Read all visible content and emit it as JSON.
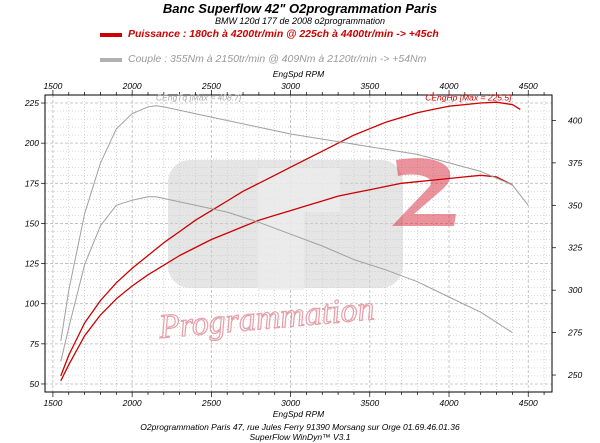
{
  "header": {
    "title": "Banc Superflow 42\" O2programmation Paris",
    "subtitle": "BMW 120d 177 de 2008 o2programmation"
  },
  "legend": [
    {
      "text": "Puissance : 180ch à 4200tr/min @ 225ch à 4400tr/min  -> +45ch",
      "color": "#cc0000",
      "text_color": "#cc0000"
    },
    {
      "text": "Couple :  355Nm à 2150tr/min @ 409Nm à 2120tr/min -> +54Nm",
      "color": "#b0b0b0",
      "text_color": "#9a9a9a"
    }
  ],
  "watermark": "Programmation",
  "footer": {
    "line1": "O2programmation Paris 47, rue Jules Ferry 91390 Morsang sur Orge 01.69.46.01.36",
    "line2": "SuperFlow WinDyn™ V3.1"
  },
  "colors": {
    "power": "#cc0000",
    "torque": "#a0a0a0",
    "grid": "#b8b8b8"
  },
  "chart_data": {
    "type": "line",
    "title": "Banc Superflow 42\" O2programmation Paris",
    "xlabel": "EngSpd RPM",
    "x_ticks": [
      1500,
      2000,
      2500,
      3000,
      3500,
      4000,
      4500
    ],
    "xlim": [
      1450,
      4650
    ],
    "y_left": {
      "lim": [
        45,
        230
      ],
      "ticks": [
        50,
        75,
        100,
        125,
        150,
        175,
        200,
        225
      ]
    },
    "y_right": {
      "lim": [
        240,
        415
      ],
      "ticks": [
        250,
        275,
        300,
        325,
        350,
        375,
        400
      ]
    },
    "annotations": [
      {
        "text": "CEngTq [Max = 408.7]",
        "color": "#a8a8a8"
      },
      {
        "text": "CEngHp [Max = 225.5]",
        "color": "#cc0000"
      }
    ],
    "series": [
      {
        "axis": "left",
        "color": "#cc0000",
        "width": 1.3,
        "x": [
          1550,
          1600,
          1700,
          1800,
          1900,
          2000,
          2100,
          2200,
          2300,
          2400,
          2500,
          2600,
          2700,
          2800,
          2900,
          3000,
          3100,
          3200,
          3300,
          3400,
          3500,
          3600,
          3700,
          3800,
          3900,
          4000,
          4100,
          4200,
          4300,
          4400,
          4450
        ],
        "y": [
          55,
          68,
          88,
          102,
          113,
          122,
          130,
          138,
          145,
          152,
          158,
          164,
          170,
          175,
          180,
          185,
          190,
          195,
          200,
          205,
          209,
          213,
          216,
          219,
          221,
          223,
          224,
          225,
          225.5,
          224,
          221
        ]
      },
      {
        "axis": "left",
        "color": "#cc0000",
        "width": 1.3,
        "x": [
          1550,
          1600,
          1700,
          1800,
          1900,
          2000,
          2100,
          2200,
          2300,
          2400,
          2500,
          2600,
          2700,
          2800,
          2900,
          3000,
          3100,
          3200,
          3300,
          3400,
          3500,
          3600,
          3700,
          3800,
          3900,
          4000,
          4100,
          4200,
          4300,
          4400
        ],
        "y": [
          52,
          62,
          80,
          93,
          103,
          111,
          118,
          124,
          130,
          135,
          140,
          144,
          148,
          152,
          155,
          158,
          161,
          164,
          167,
          169,
          171,
          173,
          175,
          176,
          177,
          178,
          179,
          180,
          179,
          174
        ]
      },
      {
        "axis": "right",
        "color": "#a0a0a0",
        "width": 1.0,
        "x": [
          1550,
          1600,
          1700,
          1800,
          1900,
          2000,
          2100,
          2150,
          2200,
          2300,
          2400,
          2500,
          2600,
          2800,
          3000,
          3200,
          3400,
          3600,
          3800,
          4000,
          4200,
          4400,
          4500
        ],
        "y": [
          270,
          300,
          345,
          375,
          395,
          404,
          408,
          408.7,
          408,
          406,
          404,
          402,
          400,
          396,
          392,
          389,
          386,
          383,
          380,
          375,
          370,
          362,
          350
        ]
      },
      {
        "axis": "right",
        "color": "#a0a0a0",
        "width": 1.0,
        "x": [
          1550,
          1600,
          1700,
          1800,
          1900,
          2000,
          2100,
          2150,
          2200,
          2300,
          2400,
          2600,
          2800,
          3000,
          3200,
          3400,
          3600,
          3800,
          4000,
          4200,
          4400
        ],
        "y": [
          258,
          278,
          315,
          338,
          350,
          353,
          355,
          355,
          354,
          352,
          350,
          346,
          340,
          333,
          326,
          318,
          312,
          305,
          296,
          287,
          275
        ]
      }
    ]
  }
}
